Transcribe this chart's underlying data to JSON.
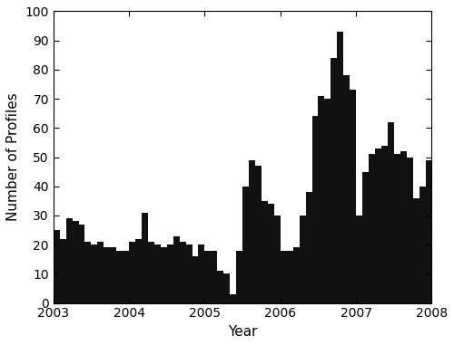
{
  "values": [
    25,
    22,
    29,
    28,
    27,
    21,
    20,
    21,
    19,
    19,
    18,
    18,
    21,
    22,
    31,
    21,
    20,
    19,
    20,
    23,
    21,
    20,
    16,
    20,
    18,
    18,
    11,
    10,
    3,
    18,
    40,
    49,
    47,
    35,
    34,
    30,
    18,
    18,
    19,
    30,
    38,
    64,
    71,
    70,
    84,
    93,
    78,
    73,
    30,
    45,
    51,
    53,
    54,
    62,
    51,
    52,
    50,
    36,
    40,
    49
  ],
  "start_year": 2003,
  "n_months": 60,
  "ylim": [
    0,
    100
  ],
  "yticks": [
    0,
    10,
    20,
    30,
    40,
    50,
    60,
    70,
    80,
    90,
    100
  ],
  "xlabel": "Year",
  "ylabel": "Number of Profiles",
  "bar_color": "#111111",
  "background_color": "#ffffff",
  "year_labels": [
    "2003",
    "2004",
    "2005",
    "2006",
    "2007",
    "2008"
  ],
  "year_tick_positions": [
    0,
    12,
    24,
    36,
    48,
    60
  ],
  "figsize": [
    5.0,
    3.81
  ],
  "dpi": 100
}
